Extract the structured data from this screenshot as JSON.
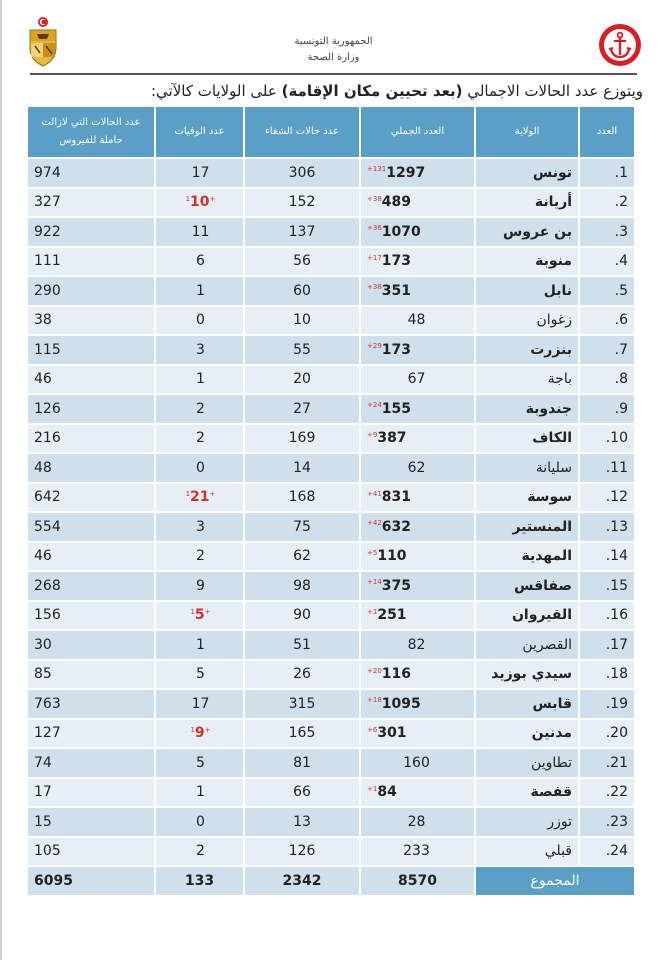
{
  "header": {
    "republic": "الجمهورية التونسية",
    "ministry": "وزارة الصحة"
  },
  "intro": {
    "before": "ويتوزع عدد الحالات الاجمالي ",
    "bold": "(بعد تحيين مكان الإقامة)",
    "after": " على الولايات كالآتي:"
  },
  "table": {
    "headers": {
      "index": "العدد",
      "governorate": "الولاية",
      "total": "العدد الجملي",
      "recovered": "عدد حالات الشفاء",
      "deaths": "عدد الوفيات",
      "active": "عدد الحالات التي لازالت حاملة للفيروس"
    },
    "rows": [
      {
        "n": "1.",
        "gov": "تونس",
        "total": "1297",
        "d_total": "+131",
        "recovered": "306",
        "deaths": "17",
        "d_deaths": "",
        "active": "974"
      },
      {
        "n": "2.",
        "gov": "أريانة",
        "total": "489",
        "d_total": "+38",
        "recovered": "152",
        "deaths": "10",
        "d_deaths": "+1",
        "active": "327"
      },
      {
        "n": "3.",
        "gov": "بن عروس",
        "total": "1070",
        "d_total": "+36",
        "recovered": "137",
        "deaths": "11",
        "d_deaths": "",
        "active": "922"
      },
      {
        "n": "4.",
        "gov": "منوبة",
        "total": "173",
        "d_total": "+17",
        "recovered": "56",
        "deaths": "6",
        "d_deaths": "",
        "active": "111"
      },
      {
        "n": "5.",
        "gov": "نابل",
        "total": "351",
        "d_total": "+38",
        "recovered": "60",
        "deaths": "1",
        "d_deaths": "",
        "active": "290"
      },
      {
        "n": "6.",
        "gov": "زغوان",
        "total": "48",
        "d_total": "",
        "recovered": "10",
        "deaths": "0",
        "d_deaths": "",
        "active": "38"
      },
      {
        "n": "7.",
        "gov": "بنزرت",
        "total": "173",
        "d_total": "+29",
        "recovered": "55",
        "deaths": "3",
        "d_deaths": "",
        "active": "115"
      },
      {
        "n": "8.",
        "gov": "باجة",
        "total": "67",
        "d_total": "",
        "recovered": "20",
        "deaths": "1",
        "d_deaths": "",
        "active": "46"
      },
      {
        "n": "9.",
        "gov": "جندوبة",
        "total": "155",
        "d_total": "+24",
        "recovered": "27",
        "deaths": "2",
        "d_deaths": "",
        "active": "126"
      },
      {
        "n": "10.",
        "gov": "الكاف",
        "total": "387",
        "d_total": "+9",
        "recovered": "169",
        "deaths": "2",
        "d_deaths": "",
        "active": "216"
      },
      {
        "n": "11.",
        "gov": "سليانة",
        "total": "62",
        "d_total": "",
        "recovered": "14",
        "deaths": "0",
        "d_deaths": "",
        "active": "48"
      },
      {
        "n": "12.",
        "gov": "سوسة",
        "total": "831",
        "d_total": "+41",
        "recovered": "168",
        "deaths": "21",
        "d_deaths": "+1",
        "active": "642"
      },
      {
        "n": "13.",
        "gov": "المنستير",
        "total": "632",
        "d_total": "+42",
        "recovered": "75",
        "deaths": "3",
        "d_deaths": "",
        "active": "554"
      },
      {
        "n": "14.",
        "gov": "المهدية",
        "total": "110",
        "d_total": "+5",
        "recovered": "62",
        "deaths": "2",
        "d_deaths": "",
        "active": "46"
      },
      {
        "n": "15.",
        "gov": "صفاقس",
        "total": "375",
        "d_total": "+14",
        "recovered": "98",
        "deaths": "9",
        "d_deaths": "",
        "active": "268"
      },
      {
        "n": "16.",
        "gov": "القيروان",
        "total": "251",
        "d_total": "+1",
        "recovered": "90",
        "deaths": "5",
        "d_deaths": "+1",
        "active": "156"
      },
      {
        "n": "17.",
        "gov": "القصرين",
        "total": "82",
        "d_total": "",
        "recovered": "51",
        "deaths": "1",
        "d_deaths": "",
        "active": "30"
      },
      {
        "n": "18.",
        "gov": "سيدي بوزيد",
        "total": "116",
        "d_total": "+20",
        "recovered": "26",
        "deaths": "5",
        "d_deaths": "",
        "active": "85"
      },
      {
        "n": "19.",
        "gov": "قابس",
        "total": "1095",
        "d_total": "+18",
        "recovered": "315",
        "deaths": "17",
        "d_deaths": "",
        "active": "763"
      },
      {
        "n": "20.",
        "gov": "مدنين",
        "total": "301",
        "d_total": "+6",
        "recovered": "165",
        "deaths": "9",
        "d_deaths": "+1",
        "active": "127"
      },
      {
        "n": "21.",
        "gov": "تطاوين",
        "total": "160",
        "d_total": "",
        "recovered": "81",
        "deaths": "5",
        "d_deaths": "",
        "active": "74"
      },
      {
        "n": "22.",
        "gov": "قفصة",
        "total": "84",
        "d_total": "+1",
        "recovered": "66",
        "deaths": "1",
        "d_deaths": "",
        "active": "17"
      },
      {
        "n": "23.",
        "gov": "توزر",
        "total": "28",
        "d_total": "",
        "recovered": "13",
        "deaths": "0",
        "d_deaths": "",
        "active": "15"
      },
      {
        "n": "24.",
        "gov": "قبلي",
        "total": "233",
        "d_total": "",
        "recovered": "126",
        "deaths": "2",
        "d_deaths": "",
        "active": "105"
      }
    ],
    "summary": {
      "label": "المجموع",
      "total": "8570",
      "recovered": "2342",
      "deaths": "133",
      "active": "6095"
    }
  },
  "colors": {
    "header_blue": "#5b9ec6",
    "row_dark": "#cfe0ec",
    "row_light": "#e6eff6",
    "increment_red": "#d0312d",
    "logo_red": "#d81f26"
  }
}
